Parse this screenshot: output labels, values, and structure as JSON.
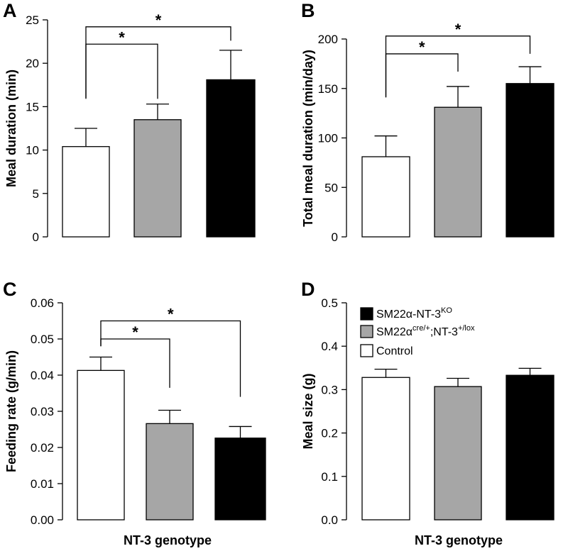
{
  "colors": {
    "control": "#ffffff",
    "het": "#a6a6a6",
    "ko": "#000000",
    "edge": "#000000"
  },
  "legend": [
    {
      "key": "ko",
      "base": "SM22α-NT-3",
      "sup": "KO"
    },
    {
      "key": "het",
      "base": "SM22α",
      "sup": "cre/+",
      "mid": ";NT-3",
      "sup2": "+/lox"
    },
    {
      "key": "control",
      "base": "Control"
    }
  ],
  "chart_data": [
    {
      "panel": "A",
      "type": "bar",
      "title": "",
      "xlabel": "",
      "ylabel": "Meal duration (min)",
      "ylim": [
        0,
        25
      ],
      "yticks": [
        0,
        5,
        10,
        15,
        20,
        25
      ],
      "ytick_labels": [
        "0",
        "5",
        "10",
        "15",
        "20",
        "25"
      ],
      "categories": [
        "Control",
        "SM22αcre/+;NT-3+/lox",
        "SM22α-NT-3KO"
      ],
      "series_keys": [
        "control",
        "het",
        "ko"
      ],
      "values": [
        10.4,
        13.5,
        18.1
      ],
      "errors": [
        2.1,
        1.8,
        3.4
      ],
      "significance": [
        {
          "from": 0,
          "to": 1,
          "label": "*",
          "y": 22.2,
          "drop_from": 16.0,
          "drop_to": 15.9
        },
        {
          "from": 0,
          "to": 2,
          "label": "*",
          "y": 24.2,
          "drop_from": 15.9,
          "drop_to": 22.6
        }
      ]
    },
    {
      "panel": "B",
      "type": "bar",
      "title": "",
      "xlabel": "",
      "ylabel": "Total meal duration (min/day)",
      "ylim": [
        0,
        200
      ],
      "yticks": [
        0,
        50,
        100,
        150,
        200
      ],
      "ytick_labels": [
        "0",
        "50",
        "100",
        "150",
        "200"
      ],
      "categories": [
        "Control",
        "SM22αcre/+;NT-3+/lox",
        "SM22α-NT-3KO"
      ],
      "series_keys": [
        "control",
        "het",
        "ko"
      ],
      "values": [
        81,
        131,
        155
      ],
      "errors": [
        21,
        21,
        17
      ],
      "significance": [
        {
          "from": 0,
          "to": 1,
          "label": "*",
          "y": 185,
          "drop_from": 141,
          "drop_to": 167
        },
        {
          "from": 0,
          "to": 2,
          "label": "*",
          "y": 203,
          "drop_from": 141,
          "drop_to": 185
        }
      ]
    },
    {
      "panel": "C",
      "type": "bar",
      "title": "",
      "xlabel": "NT-3  genotype",
      "ylabel": "Feeding rate (g/min)",
      "ylim": [
        0,
        0.06
      ],
      "yticks": [
        0,
        0.01,
        0.02,
        0.03,
        0.04,
        0.05,
        0.06
      ],
      "ytick_labels": [
        "0.00",
        "0.01",
        "0.02",
        "0.03",
        "0.04",
        "0.05",
        "0.06"
      ],
      "categories": [
        "Control",
        "SM22αcre/+;NT-3+/lox",
        "SM22α-NT-3KO"
      ],
      "series_keys": [
        "control",
        "het",
        "ko"
      ],
      "values": [
        0.0413,
        0.0266,
        0.0226
      ],
      "errors": [
        0.0037,
        0.0037,
        0.0032
      ],
      "significance": [
        {
          "from": 0,
          "to": 1,
          "label": "*",
          "y": 0.05,
          "drop_from": 0.048,
          "drop_to": 0.0365
        },
        {
          "from": 0,
          "to": 2,
          "label": "*",
          "y": 0.055,
          "drop_from": 0.048,
          "drop_to": 0.034
        }
      ]
    },
    {
      "panel": "D",
      "type": "bar",
      "title": "",
      "xlabel": "NT-3  genotype",
      "ylabel": "Meal size (g)",
      "ylim": [
        0,
        0.5
      ],
      "yticks": [
        0,
        0.1,
        0.2,
        0.3,
        0.4,
        0.5
      ],
      "ytick_labels": [
        "0.0",
        "0.1",
        "0.2",
        "0.3",
        "0.4",
        "0.5"
      ],
      "categories": [
        "Control",
        "SM22αcre/+;NT-3+/lox",
        "SM22α-NT-3KO"
      ],
      "series_keys": [
        "control",
        "het",
        "ko"
      ],
      "values": [
        0.328,
        0.307,
        0.333
      ],
      "errors": [
        0.019,
        0.019,
        0.016
      ],
      "significance": []
    }
  ]
}
